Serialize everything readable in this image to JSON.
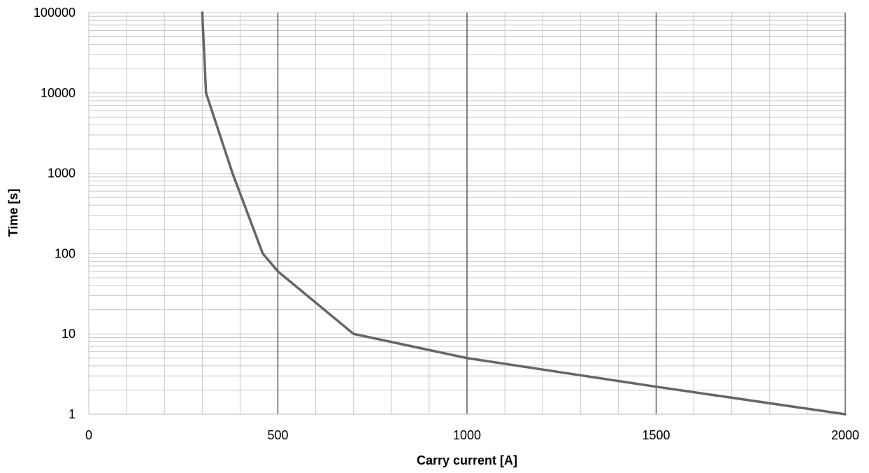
{
  "chart_data": {
    "type": "line",
    "xlabel": "Carry current [A]",
    "ylabel": "Time [s]",
    "xscale": "linear",
    "yscale": "log",
    "xlim": [
      0,
      2000
    ],
    "ylim": [
      1,
      100000
    ],
    "x_ticks": [
      0,
      500,
      1000,
      1500,
      2000
    ],
    "x_tick_labels": [
      "0",
      "500",
      "1000",
      "1500",
      "2000"
    ],
    "y_ticks": [
      1,
      10,
      100,
      1000,
      10000,
      100000
    ],
    "y_tick_labels": [
      "1",
      "10",
      "100",
      "1000",
      "10000",
      "100000"
    ],
    "x_major_gridline_step": 500,
    "x_minor_gridline_step": 100,
    "y_minor_gridlines": "log subdivisions 2-9 per decade",
    "grid": true,
    "legend": "none",
    "colors": {
      "line": "#666666",
      "major_grid": "#404040",
      "minor_grid": "#c8c8c8"
    },
    "series": [
      {
        "x": [
          300,
          310,
          380,
          460,
          500,
          700,
          1000,
          1500,
          2000
        ],
        "y": [
          100000,
          10000,
          1000,
          100,
          60,
          10,
          5,
          2.2,
          1
        ]
      }
    ]
  }
}
